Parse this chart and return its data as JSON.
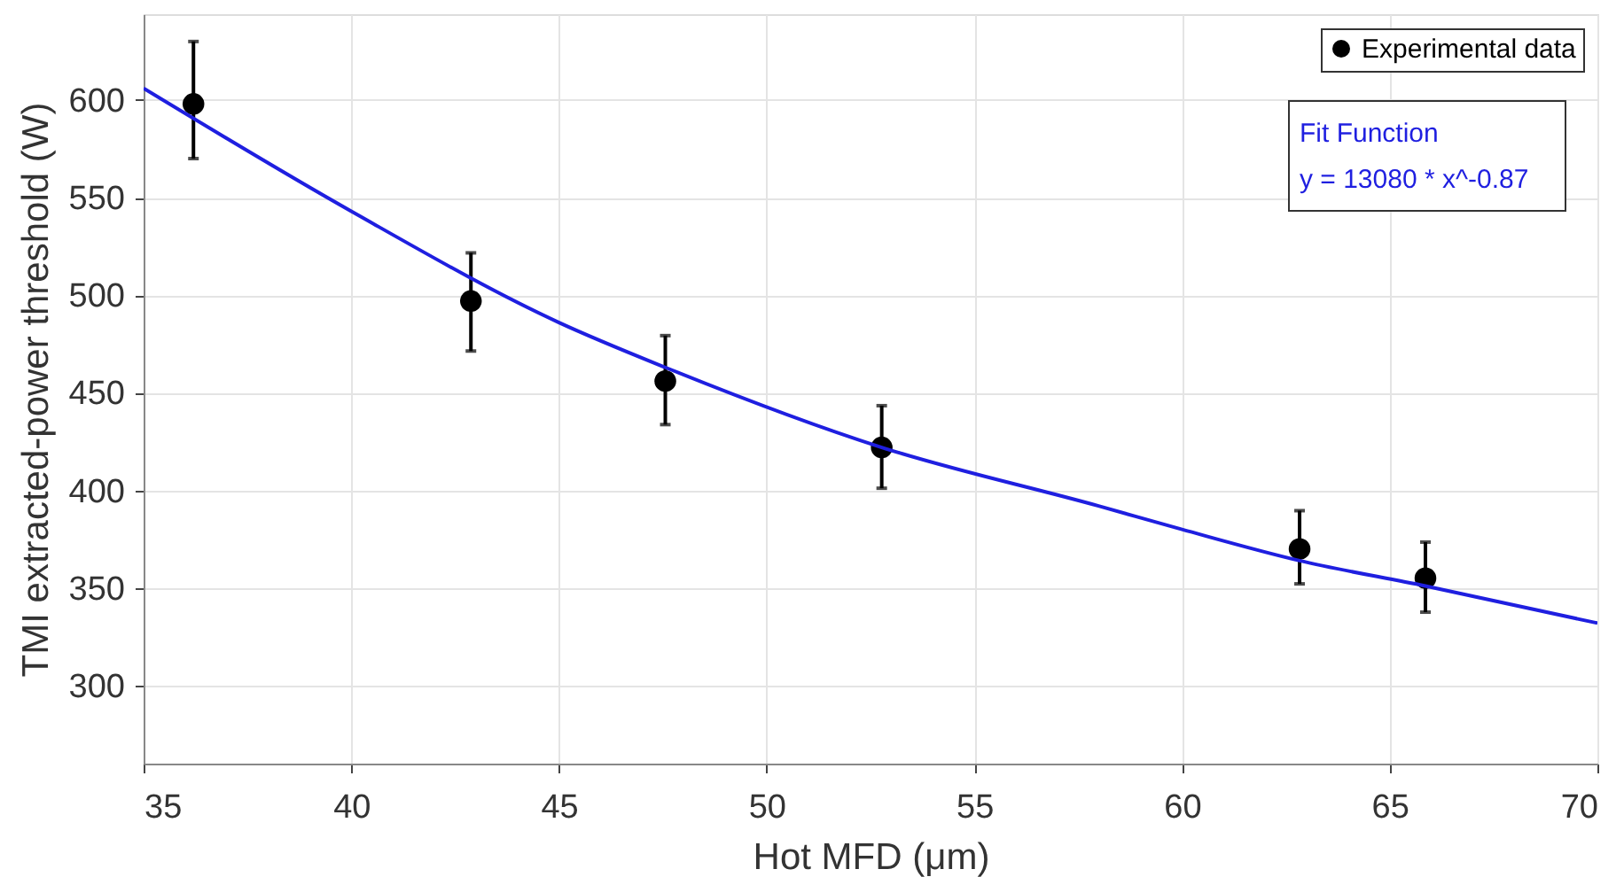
{
  "chart_data": {
    "type": "scatter",
    "xlabel": "Hot MFD (μm)",
    "ylabel": "TMI extracted-power threshold (W)",
    "xlim": [
      35,
      70
    ],
    "xticks": [
      35,
      40,
      45,
      50,
      55,
      60,
      65,
      70
    ],
    "ylim": [
      260,
      644
    ],
    "yticks": [
      300,
      350,
      400,
      450,
      500,
      550,
      600
    ],
    "grid": true,
    "legend": "top right",
    "annotations": [
      "Fit Function",
      "y = 13080 * x^-0.87"
    ],
    "series": [
      {
        "name": "Experimental data",
        "marker": "circle",
        "color": "#000000",
        "x": [
          36.2,
          42.88,
          47.56,
          52.77,
          62.83,
          65.86
        ],
        "values": [
          598,
          497,
          456,
          422,
          370,
          355
        ],
        "errors": [
          [
            570,
            630
          ],
          [
            471.4,
            521.7
          ],
          [
            433.7,
            479.3
          ],
          [
            401.1,
            443.4
          ],
          [
            352.1,
            389.6
          ],
          [
            337.6,
            373.5
          ]
        ]
      },
      {
        "type": "line",
        "marker": "none",
        "color": "#1f1fe0",
        "line_style": "solid",
        "x": [
          35,
          40,
          45,
          47.56,
          52.77,
          57.99,
          60,
          62.83,
          65.86,
          70
        ],
        "values": [
          606,
          543,
          486,
          463,
          422,
          392,
          380,
          364,
          351,
          332
        ]
      }
    ]
  }
}
